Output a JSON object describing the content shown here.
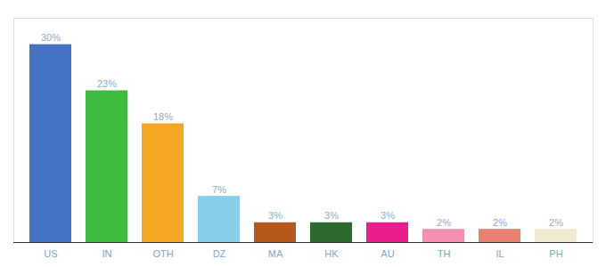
{
  "chart_data": {
    "type": "bar",
    "categories": [
      "US",
      "IN",
      "OTH",
      "DZ",
      "MA",
      "HK",
      "AU",
      "TH",
      "IL",
      "PH"
    ],
    "values": [
      30,
      23,
      18,
      7,
      3,
      3,
      3,
      2,
      2,
      2
    ],
    "value_labels": [
      "30%",
      "23%",
      "18%",
      "7%",
      "3%",
      "3%",
      "3%",
      "2%",
      "2%",
      "2%"
    ],
    "colors": [
      "#4472c4",
      "#3dbb3d",
      "#f5a623",
      "#87ceeb",
      "#b5591a",
      "#2d6a2d",
      "#e91e8c",
      "#f48fb1",
      "#e88070",
      "#f0ead0"
    ],
    "ylim": [
      0,
      34
    ],
    "data_labels": true,
    "tick_labels": "x",
    "grid": false
  }
}
